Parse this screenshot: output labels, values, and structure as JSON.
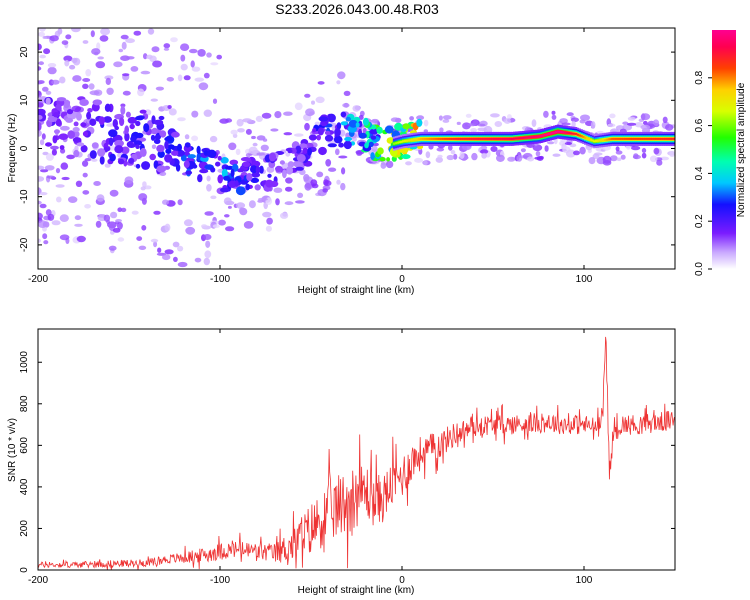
{
  "title": "S233.2026.043.00.48.R03",
  "chart_data": [
    {
      "type": "heatmap",
      "xlabel": "Height of straight line (km)",
      "ylabel": "Frequency (Hz)",
      "xlim": [
        -200,
        150
      ],
      "ylim": [
        -25,
        25
      ],
      "xticks": [
        -200,
        -100,
        0,
        100
      ],
      "yticks": [
        -20,
        -10,
        0,
        10,
        20
      ],
      "colorbar": {
        "label": "Normalized spectral amplitude",
        "range": [
          0.0,
          1.0
        ],
        "ticks": [
          0.0,
          0.2,
          0.4,
          0.6,
          0.8
        ]
      },
      "ridge": {
        "x": [
          -200,
          -180,
          -160,
          -140,
          -120,
          -100,
          -80,
          -60,
          -40,
          -25,
          -15,
          -5,
          0,
          10,
          30,
          60,
          75,
          85,
          95,
          105,
          115,
          150
        ],
        "freq": [
          5,
          5,
          3,
          2,
          -1,
          -5,
          -6,
          -3,
          4,
          4,
          1,
          1,
          1.5,
          2,
          2,
          2,
          2.5,
          3.5,
          3,
          1.5,
          2,
          2
        ],
        "amplitude": [
          0.15,
          0.15,
          0.2,
          0.2,
          0.25,
          0.3,
          0.2,
          0.15,
          0.25,
          0.35,
          0.45,
          0.55,
          0.6,
          0.7,
          0.8,
          0.85,
          0.9,
          0.95,
          0.8,
          0.6,
          0.75,
          0.8
        ]
      }
    },
    {
      "type": "line",
      "xlabel": "Height of straight line (km)",
      "ylabel": "SNR (10 * v/v)",
      "xlim": [
        -200,
        150
      ],
      "ylim": [
        0,
        1160
      ],
      "xticks": [
        -200,
        -100,
        0,
        100
      ],
      "yticks": [
        0,
        200,
        400,
        600,
        800,
        1000
      ],
      "series": [
        {
          "name": "SNR",
          "color": "#ee3333",
          "x": [
            -200,
            -180,
            -160,
            -140,
            -130,
            -120,
            -110,
            -100,
            -90,
            -80,
            -70,
            -60,
            -50,
            -40,
            -30,
            -25,
            -20,
            -15,
            -10,
            -5,
            0,
            5,
            10,
            20,
            30,
            40,
            50,
            60,
            70,
            80,
            90,
            100,
            105,
            110,
            112,
            114,
            116,
            120,
            130,
            140,
            150
          ],
          "y": [
            25,
            25,
            30,
            35,
            50,
            60,
            70,
            90,
            100,
            90,
            80,
            120,
            200,
            280,
            330,
            360,
            380,
            330,
            350,
            420,
            450,
            520,
            560,
            600,
            660,
            690,
            700,
            700,
            705,
            710,
            700,
            700,
            690,
            690,
            1150,
            450,
            650,
            700,
            700,
            710,
            720
          ],
          "noise_amplitude": [
            20,
            20,
            25,
            25,
            30,
            40,
            50,
            60,
            60,
            60,
            70,
            120,
            180,
            220,
            230,
            220,
            200,
            180,
            170,
            160,
            150,
            140,
            120,
            100,
            80,
            70,
            70,
            70,
            70,
            70,
            70,
            70,
            70,
            70,
            70,
            70,
            70,
            70,
            70,
            70,
            70
          ]
        }
      ]
    }
  ]
}
